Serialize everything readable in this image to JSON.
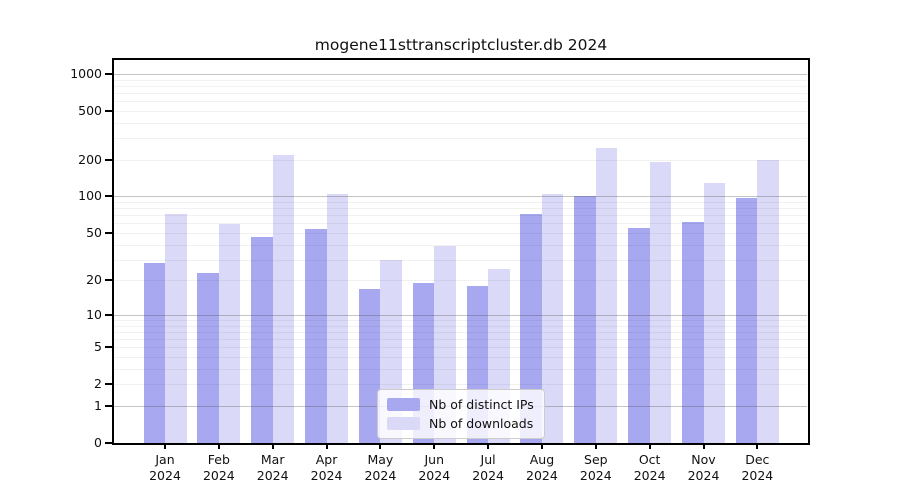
{
  "figure": {
    "title": "mogene11sttranscriptcluster.db 2024"
  },
  "chart_data": {
    "type": "bar",
    "title": "mogene11sttranscriptcluster.db 2024",
    "categories": [
      "Jan",
      "Feb",
      "Mar",
      "Apr",
      "May",
      "Jun",
      "Jul",
      "Aug",
      "Sep",
      "Oct",
      "Nov",
      "Dec"
    ],
    "category_year": "2024",
    "series": [
      {
        "name": "Nb of distinct IPs",
        "color": "#a8a8f0",
        "values": [
          28,
          23,
          46,
          54,
          17,
          19,
          18,
          72,
          101,
          55,
          62,
          98
        ]
      },
      {
        "name": "Nb of downloads",
        "color": "#dadaf8",
        "values": [
          72,
          59,
          220,
          105,
          30,
          39,
          25,
          105,
          250,
          192,
          130,
          200
        ]
      }
    ],
    "y_axis": {
      "scale": "log1p",
      "ticks": [
        0,
        1,
        2,
        5,
        10,
        20,
        50,
        100,
        200,
        500,
        1000
      ],
      "major_gridlines": [
        1,
        10,
        100,
        1000
      ],
      "ylim": [
        0,
        1300
      ]
    },
    "legend": {
      "position": "inside-bottom-center",
      "entries": [
        "Nb of distinct IPs",
        "Nb of downloads"
      ]
    },
    "grid": "log-minor-and-major",
    "background": "#ffffff"
  }
}
